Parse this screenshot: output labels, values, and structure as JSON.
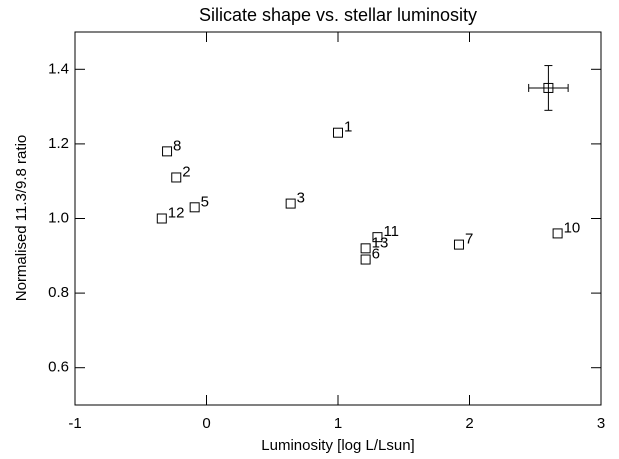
{
  "chart_data": {
    "type": "scatter",
    "title": "Silicate shape vs. stellar luminosity",
    "xlabel": "Luminosity  [log L/Lsun]",
    "ylabel": "Normalised 11.3/9.8 ratio",
    "xlim": [
      -1,
      3
    ],
    "ylim": [
      0.5,
      1.5
    ],
    "xticks": [
      -1,
      0,
      1,
      2,
      3
    ],
    "yticks": [
      0.6,
      0.8,
      {
        "value": 1,
        "label": "1.0"
      },
      1.2,
      1.4
    ],
    "color": "#000000",
    "x": [
      1.0,
      -0.23,
      0.64,
      -0.09,
      1.21,
      1.92,
      -0.3,
      2.67,
      1.3,
      -0.34,
      1.21
    ],
    "values": [
      1.23,
      1.11,
      1.04,
      1.03,
      0.89,
      0.93,
      1.18,
      0.96,
      0.95,
      1.0,
      0.92
    ],
    "labels": [
      "1",
      "2",
      "3",
      "5",
      "6",
      "7",
      "8",
      "10",
      "11",
      "12",
      "13"
    ],
    "error_point": {
      "x": 2.6,
      "y": 1.35,
      "xerr": 0.15,
      "yerr": 0.06
    }
  }
}
